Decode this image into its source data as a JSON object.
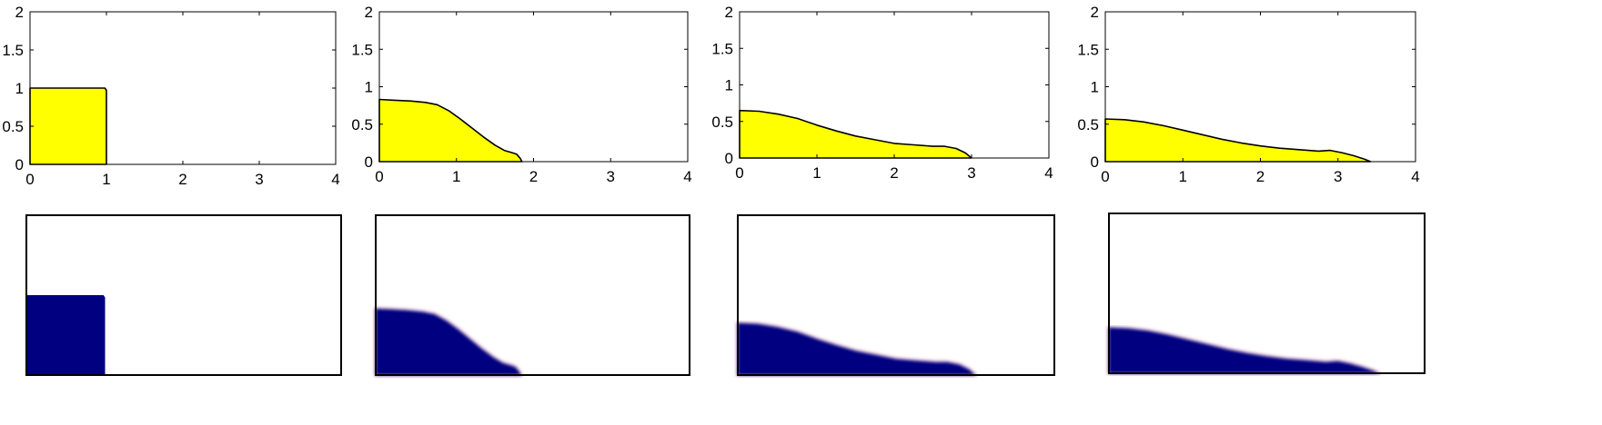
{
  "chart_data": [
    {
      "type": "area",
      "title": "",
      "xlabel": "",
      "ylabel": "",
      "xlim": [
        0,
        4
      ],
      "ylim": [
        0,
        2
      ],
      "x_ticks": [
        "0",
        "1",
        "2",
        "3",
        "4"
      ],
      "y_ticks": [
        "0",
        "0.5",
        "1",
        "1.5",
        "2"
      ],
      "grid": false,
      "fill_color": "#ffff00",
      "series": [
        {
          "x": [
            0,
            0.5,
            0.98,
            1.0,
            1.0
          ],
          "values": [
            1.0,
            1.0,
            1.0,
            0.97,
            0
          ]
        }
      ]
    },
    {
      "type": "area",
      "title": "",
      "xlabel": "",
      "ylabel": "",
      "xlim": [
        0,
        4
      ],
      "ylim": [
        0,
        2
      ],
      "x_ticks": [
        "0",
        "1",
        "2",
        "3",
        "4"
      ],
      "y_ticks": [
        "0",
        "0.5",
        "1",
        "1.5",
        "2"
      ],
      "grid": false,
      "fill_color": "#ffff00",
      "series": [
        {
          "x": [
            0,
            0.2,
            0.4,
            0.6,
            0.75,
            0.9,
            1.05,
            1.2,
            1.35,
            1.5,
            1.62,
            1.72,
            1.78,
            1.83,
            1.85
          ],
          "values": [
            0.83,
            0.82,
            0.81,
            0.79,
            0.76,
            0.68,
            0.57,
            0.45,
            0.33,
            0.22,
            0.15,
            0.12,
            0.1,
            0.04,
            0
          ]
        }
      ]
    },
    {
      "type": "area",
      "title": "",
      "xlabel": "",
      "ylabel": "",
      "xlim": [
        0,
        4
      ],
      "ylim": [
        0,
        2
      ],
      "x_ticks": [
        "0",
        "1",
        "2",
        "3",
        "4"
      ],
      "y_ticks": [
        "0",
        "0.5",
        "1",
        "1.5",
        "2"
      ],
      "grid": false,
      "fill_color": "#ffff00",
      "series": [
        {
          "x": [
            0,
            0.25,
            0.5,
            0.75,
            1.0,
            1.25,
            1.5,
            1.75,
            2.0,
            2.25,
            2.5,
            2.65,
            2.8,
            2.92,
            3.0
          ],
          "values": [
            0.65,
            0.64,
            0.6,
            0.54,
            0.45,
            0.37,
            0.3,
            0.25,
            0.2,
            0.18,
            0.16,
            0.16,
            0.13,
            0.07,
            0
          ]
        }
      ]
    },
    {
      "type": "area",
      "title": "",
      "xlabel": "",
      "ylabel": "",
      "xlim": [
        0,
        4
      ],
      "ylim": [
        0,
        2
      ],
      "x_ticks": [
        "0",
        "1",
        "2",
        "3",
        "4"
      ],
      "y_ticks": [
        "0",
        "0.5",
        "1",
        "1.5",
        "2"
      ],
      "grid": false,
      "fill_color": "#ffff00",
      "series": [
        {
          "x": [
            0,
            0.25,
            0.5,
            0.75,
            1.0,
            1.25,
            1.5,
            1.75,
            2.0,
            2.25,
            2.5,
            2.75,
            2.9,
            3.05,
            3.2,
            3.35,
            3.42
          ],
          "values": [
            0.57,
            0.56,
            0.53,
            0.48,
            0.42,
            0.36,
            0.3,
            0.25,
            0.21,
            0.18,
            0.16,
            0.14,
            0.15,
            0.12,
            0.08,
            0.03,
            0
          ]
        }
      ]
    }
  ],
  "fields": {
    "fluid_color": "#000080",
    "halo_color": "#e6c8dc"
  }
}
